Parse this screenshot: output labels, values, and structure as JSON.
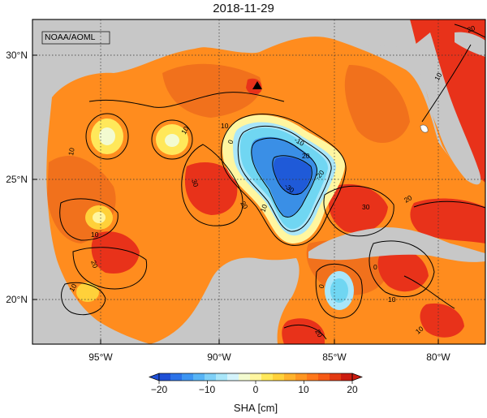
{
  "title": "2018-11-29",
  "credit": "NOAA/AOML",
  "x_axis": {
    "ticks": [
      "95°W",
      "90°W",
      "85°W",
      "80°W"
    ]
  },
  "y_axis": {
    "ticks": [
      "30°N",
      "25°N",
      "20°N"
    ]
  },
  "contour_labels": [
    {
      "text": "10"
    },
    {
      "text": "10"
    },
    {
      "text": "10"
    },
    {
      "text": "10"
    },
    {
      "text": "20"
    },
    {
      "text": "30"
    },
    {
      "text": "20"
    },
    {
      "text": "0"
    },
    {
      "text": "-10"
    },
    {
      "text": "-20"
    },
    {
      "text": "-30"
    },
    {
      "text": "20"
    },
    {
      "text": "10"
    },
    {
      "text": "10"
    },
    {
      "text": "20"
    },
    {
      "text": "30"
    },
    {
      "text": "10"
    },
    {
      "text": "10"
    },
    {
      "text": "20"
    },
    {
      "text": "0"
    },
    {
      "text": "0"
    },
    {
      "text": "10"
    },
    {
      "text": "20"
    }
  ],
  "colorbar": {
    "label": "SHA [cm]",
    "ticks": [
      "−20",
      "−10",
      "0",
      "10",
      "20"
    ],
    "colors": [
      "#1f4fd6",
      "#2c72e8",
      "#3d95f2",
      "#57b4f5",
      "#7fd0f7",
      "#a9e6f9",
      "#d4f3fb",
      "#f3fbd0",
      "#fff6a0",
      "#ffe85a",
      "#ffd13a",
      "#ffb32c",
      "#ff9622",
      "#ff781c",
      "#f65a16",
      "#e33a12",
      "#cc1c10"
    ]
  },
  "colors": {
    "land": "#c7c7c7",
    "ocean_base": "#ff8c1e",
    "ocean_dark": "#f1711c",
    "high_red": "#e8321a",
    "cyclone_cyan": "#70d6f2",
    "cyclone_blue": "#3a8fe6",
    "cyclone_deep": "#1f5ad8",
    "contour": "#000000"
  }
}
